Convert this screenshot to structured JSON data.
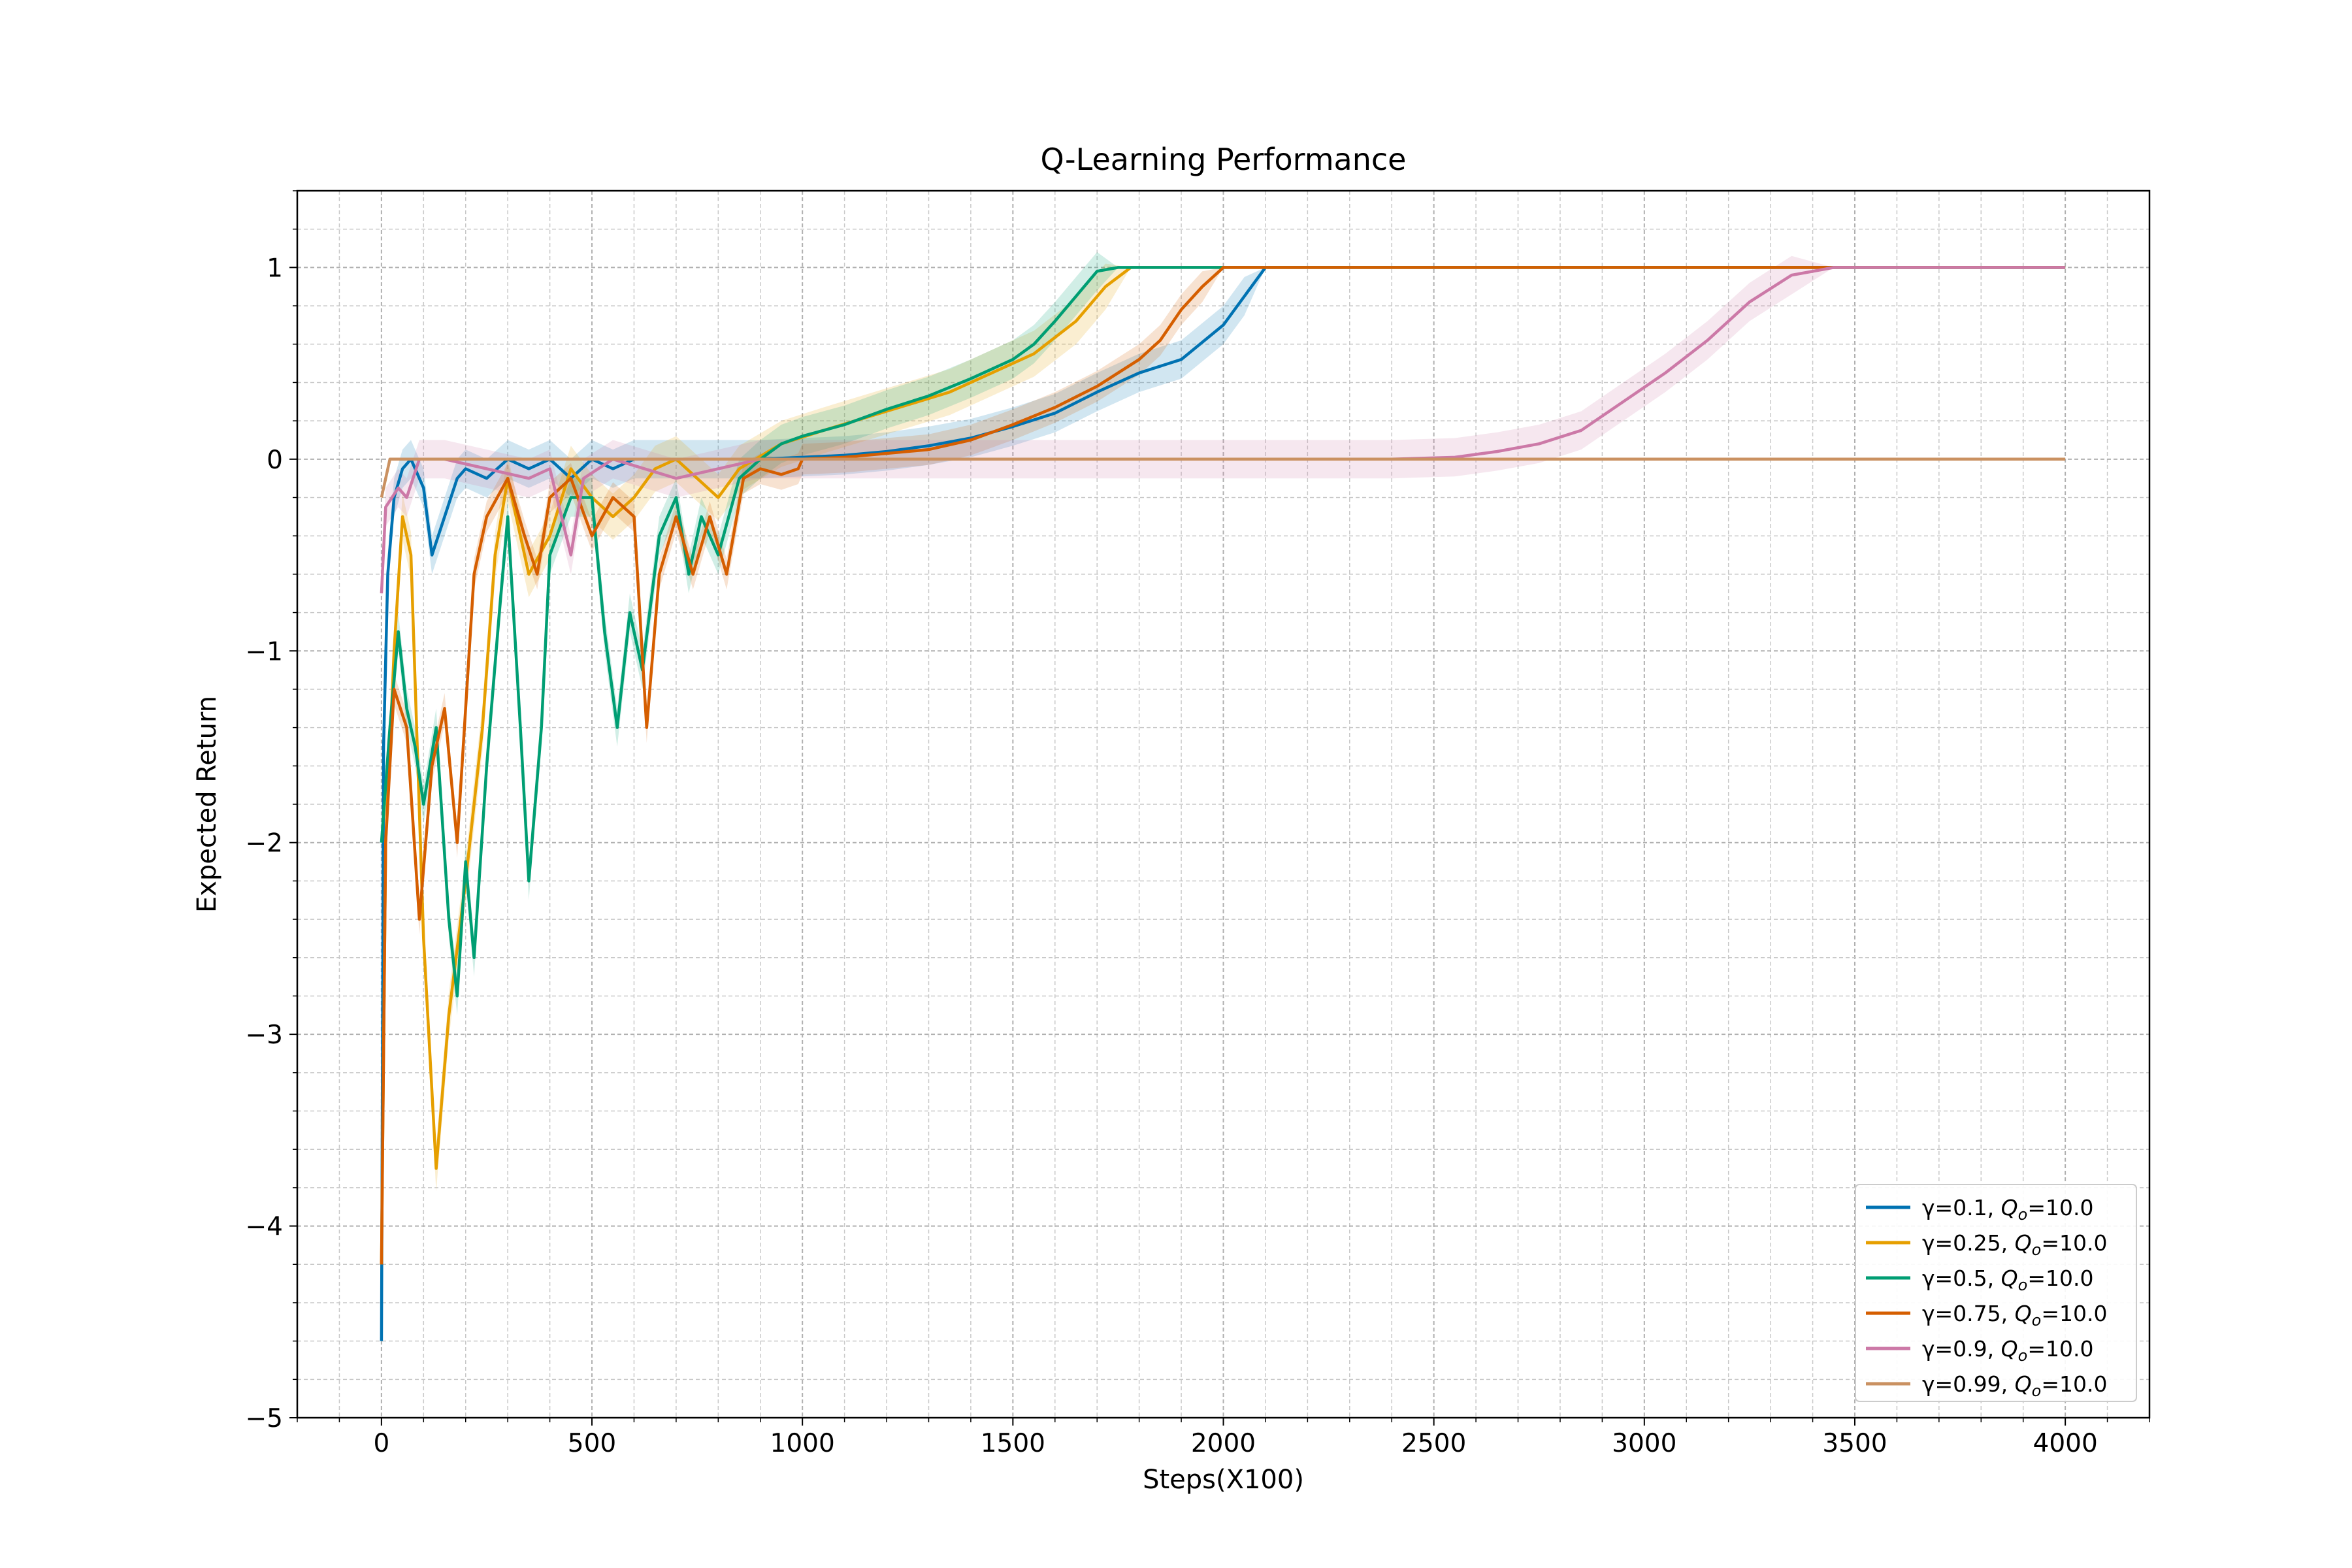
{
  "chart_data": {
    "type": "line",
    "title": "Q-Learning Performance",
    "xlabel": "Steps(X100)",
    "ylabel": "Expected Return",
    "xlim": [
      -200,
      4200
    ],
    "ylim": [
      -5,
      1.4
    ],
    "xticks": [
      0,
      500,
      1000,
      1500,
      2000,
      2500,
      3000,
      3500,
      4000
    ],
    "xtick_labels": [
      "0",
      "500",
      "1000",
      "1500",
      "2000",
      "2500",
      "3000",
      "3500",
      "4000"
    ],
    "yticks": [
      -5,
      -4,
      -3,
      -2,
      -1,
      0,
      1
    ],
    "ytick_labels": [
      "−5",
      "−4",
      "−3",
      "−2",
      "−1",
      "0",
      "1"
    ],
    "grid": "major and minor, dashed",
    "legend_position": "lower-right",
    "series": [
      {
        "name": "γ=0.1, Qₒ=10.0",
        "legend_prefix": "γ=0.1, ",
        "legend_suffix": "=10.0",
        "color": "#0072b2",
        "band": 0.1,
        "points": [
          [
            0,
            -4.6
          ],
          [
            5,
            -1.5
          ],
          [
            15,
            -0.6
          ],
          [
            30,
            -0.2
          ],
          [
            50,
            -0.05
          ],
          [
            70,
            0
          ],
          [
            100,
            -0.15
          ],
          [
            120,
            -0.5
          ],
          [
            150,
            -0.3
          ],
          [
            180,
            -0.1
          ],
          [
            200,
            -0.05
          ],
          [
            250,
            -0.1
          ],
          [
            300,
            0
          ],
          [
            350,
            -0.05
          ],
          [
            400,
            0
          ],
          [
            450,
            -0.1
          ],
          [
            500,
            0
          ],
          [
            550,
            -0.05
          ],
          [
            600,
            0
          ],
          [
            700,
            0
          ],
          [
            900,
            0
          ],
          [
            1000,
            0.01
          ],
          [
            1100,
            0.02
          ],
          [
            1200,
            0.04
          ],
          [
            1300,
            0.07
          ],
          [
            1400,
            0.11
          ],
          [
            1500,
            0.17
          ],
          [
            1600,
            0.24
          ],
          [
            1700,
            0.35
          ],
          [
            1800,
            0.45
          ],
          [
            1900,
            0.52
          ],
          [
            2000,
            0.7
          ],
          [
            2050,
            0.85
          ],
          [
            2100,
            1
          ],
          [
            4000,
            1
          ]
        ]
      },
      {
        "name": "γ=0.25, Qₒ=10.0",
        "legend_prefix": "γ=0.25, ",
        "legend_suffix": "=10.0",
        "color": "#e69f00",
        "band": 0.12,
        "points": [
          [
            0,
            -4.2
          ],
          [
            10,
            -2
          ],
          [
            30,
            -1
          ],
          [
            50,
            -0.3
          ],
          [
            70,
            -0.5
          ],
          [
            100,
            -2.5
          ],
          [
            130,
            -3.7
          ],
          [
            160,
            -2.9
          ],
          [
            200,
            -2.2
          ],
          [
            240,
            -1.4
          ],
          [
            270,
            -0.5
          ],
          [
            300,
            -0.1
          ],
          [
            350,
            -0.6
          ],
          [
            400,
            -0.4
          ],
          [
            450,
            -0.05
          ],
          [
            500,
            -0.2
          ],
          [
            550,
            -0.3
          ],
          [
            600,
            -0.2
          ],
          [
            650,
            -0.05
          ],
          [
            700,
            0
          ],
          [
            750,
            -0.1
          ],
          [
            800,
            -0.2
          ],
          [
            850,
            -0.05
          ],
          [
            950,
            0.08
          ],
          [
            1050,
            0.15
          ],
          [
            1200,
            0.25
          ],
          [
            1350,
            0.35
          ],
          [
            1450,
            0.45
          ],
          [
            1550,
            0.55
          ],
          [
            1650,
            0.72
          ],
          [
            1720,
            0.9
          ],
          [
            1780,
            1
          ],
          [
            4000,
            1
          ]
        ]
      },
      {
        "name": "γ=0.5, Qₒ=10.0",
        "legend_prefix": "γ=0.5, ",
        "legend_suffix": "=10.0",
        "color": "#009e73",
        "band": 0.1,
        "points": [
          [
            0,
            -2
          ],
          [
            20,
            -1.4
          ],
          [
            40,
            -0.9
          ],
          [
            60,
            -1.3
          ],
          [
            80,
            -1.5
          ],
          [
            100,
            -1.8
          ],
          [
            130,
            -1.4
          ],
          [
            160,
            -2.4
          ],
          [
            180,
            -2.8
          ],
          [
            200,
            -2.1
          ],
          [
            220,
            -2.6
          ],
          [
            250,
            -1.6
          ],
          [
            280,
            -0.8
          ],
          [
            300,
            -0.3
          ],
          [
            330,
            -1.4
          ],
          [
            350,
            -2.2
          ],
          [
            380,
            -1.4
          ],
          [
            400,
            -0.5
          ],
          [
            450,
            -0.2
          ],
          [
            500,
            -0.2
          ],
          [
            530,
            -0.9
          ],
          [
            560,
            -1.4
          ],
          [
            590,
            -0.8
          ],
          [
            620,
            -1.1
          ],
          [
            660,
            -0.4
          ],
          [
            700,
            -0.2
          ],
          [
            730,
            -0.6
          ],
          [
            760,
            -0.3
          ],
          [
            800,
            -0.5
          ],
          [
            850,
            -0.1
          ],
          [
            900,
            0
          ],
          [
            950,
            0.08
          ],
          [
            1000,
            0.12
          ],
          [
            1100,
            0.18
          ],
          [
            1200,
            0.26
          ],
          [
            1300,
            0.33
          ],
          [
            1400,
            0.42
          ],
          [
            1500,
            0.52
          ],
          [
            1550,
            0.6
          ],
          [
            1600,
            0.72
          ],
          [
            1650,
            0.85
          ],
          [
            1700,
            0.98
          ],
          [
            1750,
            1
          ],
          [
            4000,
            1
          ]
        ]
      },
      {
        "name": "γ=0.75, Qₒ=10.0",
        "legend_prefix": "γ=0.75, ",
        "legend_suffix": "=10.0",
        "color": "#d55e00",
        "band": 0.08,
        "points": [
          [
            0,
            -4.2
          ],
          [
            10,
            -2
          ],
          [
            30,
            -1.2
          ],
          [
            60,
            -1.4
          ],
          [
            90,
            -2.4
          ],
          [
            120,
            -1.6
          ],
          [
            150,
            -1.3
          ],
          [
            180,
            -2
          ],
          [
            200,
            -1.3
          ],
          [
            220,
            -0.6
          ],
          [
            250,
            -0.3
          ],
          [
            300,
            -0.1
          ],
          [
            340,
            -0.4
          ],
          [
            370,
            -0.6
          ],
          [
            400,
            -0.2
          ],
          [
            450,
            -0.1
          ],
          [
            500,
            -0.4
          ],
          [
            550,
            -0.2
          ],
          [
            600,
            -0.3
          ],
          [
            630,
            -1.4
          ],
          [
            660,
            -0.6
          ],
          [
            700,
            -0.3
          ],
          [
            740,
            -0.6
          ],
          [
            780,
            -0.3
          ],
          [
            820,
            -0.6
          ],
          [
            860,
            -0.1
          ],
          [
            900,
            -0.05
          ],
          [
            950,
            -0.08
          ],
          [
            990,
            -0.05
          ],
          [
            1000,
            0
          ],
          [
            1100,
            0.01
          ],
          [
            1200,
            0.03
          ],
          [
            1300,
            0.05
          ],
          [
            1400,
            0.1
          ],
          [
            1500,
            0.18
          ],
          [
            1600,
            0.27
          ],
          [
            1700,
            0.38
          ],
          [
            1800,
            0.52
          ],
          [
            1850,
            0.62
          ],
          [
            1900,
            0.78
          ],
          [
            1950,
            0.9
          ],
          [
            2000,
            1
          ],
          [
            4000,
            1
          ]
        ]
      },
      {
        "name": "γ=0.9, Qₒ=10.0",
        "legend_prefix": "γ=0.9, ",
        "legend_suffix": "=10.0",
        "color": "#cc79a7",
        "band": 0.1,
        "points": [
          [
            0,
            -0.7
          ],
          [
            10,
            -0.25
          ],
          [
            40,
            -0.15
          ],
          [
            60,
            -0.2
          ],
          [
            90,
            0
          ],
          [
            150,
            0
          ],
          [
            250,
            -0.05
          ],
          [
            350,
            -0.1
          ],
          [
            400,
            -0.05
          ],
          [
            450,
            -0.5
          ],
          [
            480,
            -0.1
          ],
          [
            550,
            0
          ],
          [
            700,
            -0.1
          ],
          [
            800,
            -0.05
          ],
          [
            900,
            0
          ],
          [
            2400,
            0
          ],
          [
            2550,
            0.01
          ],
          [
            2650,
            0.04
          ],
          [
            2750,
            0.08
          ],
          [
            2850,
            0.15
          ],
          [
            2950,
            0.3
          ],
          [
            3050,
            0.45
          ],
          [
            3150,
            0.62
          ],
          [
            3250,
            0.82
          ],
          [
            3350,
            0.96
          ],
          [
            3450,
            1
          ],
          [
            4000,
            1
          ]
        ]
      },
      {
        "name": "γ=0.99, Qₒ=10.0",
        "legend_prefix": "γ=0.99, ",
        "legend_suffix": "=10.0",
        "color": "#ca9161",
        "band": 0,
        "points": [
          [
            0,
            -0.2
          ],
          [
            20,
            0
          ],
          [
            4000,
            0
          ]
        ]
      }
    ]
  }
}
